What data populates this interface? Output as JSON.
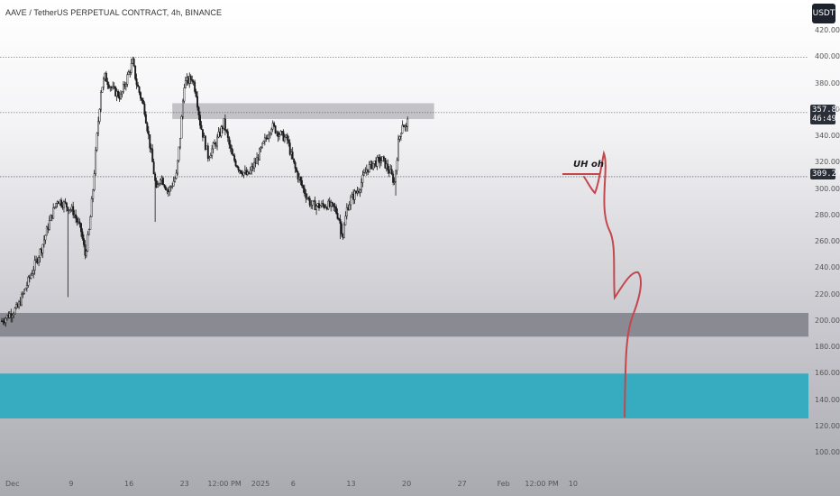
{
  "header": {
    "title": "AAVE / TetherUS PERPETUAL CONTRACT, 4h, BINANCE",
    "currency_button": "USDT"
  },
  "price_labels": {
    "current_price": "357.86",
    "countdown": "46:49",
    "marked_price": "309.27"
  },
  "annotation": {
    "text": "UH oh"
  },
  "colors": {
    "candle": "#1a1a1a",
    "resistance_box": "#b8b8be",
    "support_gray_zone": "#8a8a93",
    "support_teal_zone": "#37abbf",
    "projection_line": "#c4474d"
  },
  "chart_data": {
    "type": "candlestick",
    "title": "AAVE / TetherUS PERPETUAL CONTRACT, 4h, BINANCE",
    "ylim": [
      90,
      425
    ],
    "y_ticks": [
      420,
      400,
      380,
      360,
      340,
      320,
      300,
      280,
      260,
      240,
      220,
      200,
      180,
      160,
      140,
      120,
      100
    ],
    "y_tick_labels": [
      "420.00",
      "400.00",
      "380.00",
      "360.00",
      "340.00",
      "320.00",
      "300.00",
      "280.00",
      "260.00",
      "240.00",
      "220.00",
      "200.00",
      "180.00",
      "160.00",
      "140.00",
      "120.00",
      "100.00"
    ],
    "x_tick_labels": [
      "Dec",
      "9",
      "16",
      "23",
      "12:00 PM",
      "2025",
      "6",
      "13",
      "20",
      "27",
      "Feb",
      "12:00 PM",
      "10"
    ],
    "x_ticks": [
      {
        "label": "Dec",
        "day": 0
      },
      {
        "label": "9",
        "day": 8
      },
      {
        "label": "16",
        "day": 15
      },
      {
        "label": "23",
        "day": 22
      },
      {
        "label": "12:00 PM",
        "day": 25.5
      },
      {
        "label": "2025",
        "day": 31
      },
      {
        "label": "6",
        "day": 36
      },
      {
        "label": "13",
        "day": 43
      },
      {
        "label": "20",
        "day": 50
      },
      {
        "label": "27",
        "day": 57
      },
      {
        "label": "Feb",
        "day": 62
      },
      {
        "label": "12:00 PM",
        "day": 65.5
      },
      {
        "label": "10",
        "day": 71
      }
    ],
    "grid": false,
    "horizontal_lines": [
      400,
      357.86,
      309.27
    ],
    "zones": [
      {
        "name": "resistance",
        "from": 353,
        "to": 365,
        "start_day": 21.5,
        "end_day": 54.5
      },
      {
        "name": "support",
        "from": 188,
        "to": 206
      },
      {
        "name": "demand",
        "from": 126,
        "to": 160
      }
    ],
    "path": [
      [
        0,
        200
      ],
      [
        1,
        205
      ],
      [
        2,
        210
      ],
      [
        3,
        225
      ],
      [
        4,
        240
      ],
      [
        5,
        255
      ],
      [
        6,
        275
      ],
      [
        7,
        292
      ],
      [
        8,
        288
      ],
      [
        9,
        283
      ],
      [
        10,
        268
      ],
      [
        10.5,
        250
      ],
      [
        11,
        268
      ],
      [
        11.5,
        300
      ],
      [
        12,
        340
      ],
      [
        12.5,
        375
      ],
      [
        13,
        385
      ],
      [
        14,
        375
      ],
      [
        15,
        370
      ],
      [
        16,
        388
      ],
      [
        16.5,
        396
      ],
      [
        17,
        380
      ],
      [
        18,
        360
      ],
      [
        19,
        320
      ],
      [
        19.5,
        298
      ],
      [
        20,
        310
      ],
      [
        21,
        298
      ],
      [
        22,
        310
      ],
      [
        22.5,
        340
      ],
      [
        23,
        380
      ],
      [
        24,
        384
      ],
      [
        24.5,
        373
      ],
      [
        25,
        350
      ],
      [
        26,
        325
      ],
      [
        27,
        335
      ],
      [
        28,
        350
      ],
      [
        29,
        325
      ],
      [
        30,
        315
      ],
      [
        31,
        310
      ],
      [
        32,
        320
      ],
      [
        33,
        334
      ],
      [
        34,
        348
      ],
      [
        35,
        342
      ],
      [
        36,
        337
      ],
      [
        36.5,
        325
      ],
      [
        37,
        315
      ],
      [
        38,
        300
      ],
      [
        39,
        288
      ],
      [
        40,
        287
      ],
      [
        41,
        288
      ],
      [
        42,
        285
      ],
      [
        42.5,
        278
      ],
      [
        43,
        265
      ],
      [
        43.5,
        285
      ],
      [
        44,
        292
      ],
      [
        45,
        300
      ],
      [
        46,
        315
      ],
      [
        47,
        320
      ],
      [
        48,
        322
      ],
      [
        49,
        312
      ],
      [
        49.5,
        305
      ],
      [
        50,
        335
      ],
      [
        50.5,
        350
      ],
      [
        51,
        345
      ],
      [
        51.2,
        357.86
      ]
    ],
    "wicks": [
      {
        "day": 8.3,
        "low": 218
      },
      {
        "day": 19.4,
        "low": 275
      },
      {
        "day": 42.6,
        "low": 262
      },
      {
        "day": 49.6,
        "low": 295
      }
    ]
  }
}
